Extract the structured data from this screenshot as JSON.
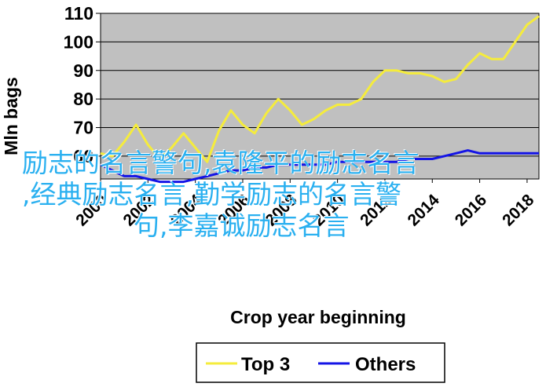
{
  "chart_data": {
    "type": "line",
    "xlabel": "Crop year beginning",
    "ylabel": "Mln bags",
    "x": [
      2000,
      2000.5,
      2001,
      2001.5,
      2002,
      2002.5,
      2003,
      2003.5,
      2004,
      2004.5,
      2005,
      2005.5,
      2006,
      2006.5,
      2007,
      2007.5,
      2008,
      2008.5,
      2009,
      2009.5,
      2010,
      2010.5,
      2011,
      2011.5,
      2012,
      2012.5,
      2013,
      2013.5,
      2014,
      2014.5,
      2015,
      2015.5,
      2016,
      2016.5,
      2017,
      2017.5,
      2018,
      2018.5
    ],
    "xticks": [
      "2000",
      "2002",
      "2004",
      "2006",
      "2008",
      "2010",
      "2012",
      "2014",
      "2016",
      "2018"
    ],
    "xlim": [
      2000,
      2018.5
    ],
    "yticks": [
      60,
      70,
      80,
      90,
      100,
      110
    ],
    "ylim": [
      52,
      110
    ],
    "grid": true,
    "legend_position": "bottom",
    "series": [
      {
        "name": "Top 3",
        "color": "#f5ec3c",
        "values": [
          61,
          60,
          65,
          71,
          64,
          59,
          63,
          68,
          63,
          58,
          69,
          76,
          71,
          68,
          75,
          80,
          76,
          71,
          73,
          76,
          78,
          78,
          80,
          86,
          90,
          90,
          89,
          89,
          88,
          86,
          87,
          92,
          96,
          94,
          94,
          100,
          106,
          109
        ]
      },
      {
        "name": "Others",
        "color": "#1414e6",
        "values": [
          57,
          55,
          53,
          53,
          52,
          51,
          51,
          51,
          52,
          53,
          54,
          55,
          55,
          56,
          56,
          57,
          57,
          57,
          57,
          57,
          58,
          58,
          58,
          58,
          58,
          58,
          59,
          59,
          59,
          60,
          61,
          62,
          61,
          61,
          61,
          61,
          61,
          61
        ]
      }
    ]
  },
  "watermark": {
    "lines": [
      "励志的名言警句,袁隆平的励志名言",
      ",经典励志名言,勤学励志的名言警",
      "句,李嘉诚励志名言"
    ],
    "color": "#2ab0f0"
  }
}
